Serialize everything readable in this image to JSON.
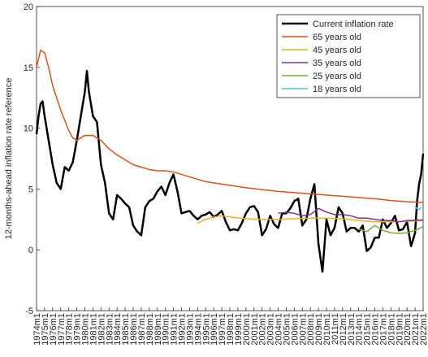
{
  "chart_data": {
    "type": "line",
    "ylabel": "12-months-ahead inflation rate reference",
    "xlim": [
      1974,
      2022
    ],
    "ylim": [
      -5,
      20
    ],
    "yticks": [
      -5,
      0,
      5,
      10,
      15,
      20
    ],
    "xticks": [
      {
        "value": 1974,
        "label": "1974m1"
      },
      {
        "value": 1975,
        "label": "1975m1"
      },
      {
        "value": 1976,
        "label": "1976m1"
      },
      {
        "value": 1977,
        "label": "1977m1"
      },
      {
        "value": 1978,
        "label": "1978m1"
      },
      {
        "value": 1979,
        "label": "1979m1"
      },
      {
        "value": 1980,
        "label": "1980m1"
      },
      {
        "value": 1981,
        "label": "1981m1"
      },
      {
        "value": 1982,
        "label": "1982m1"
      },
      {
        "value": 1983,
        "label": "1983m1"
      },
      {
        "value": 1984,
        "label": "1984m1"
      },
      {
        "value": 1985,
        "label": "1985m1"
      },
      {
        "value": 1986,
        "label": "1986m1"
      },
      {
        "value": 1987,
        "label": "1987m1"
      },
      {
        "value": 1988,
        "label": "1988m1"
      },
      {
        "value": 1989,
        "label": "1989m1"
      },
      {
        "value": 1990,
        "label": "1990m1"
      },
      {
        "value": 1991,
        "label": "1991m1"
      },
      {
        "value": 1992,
        "label": "1992m1"
      },
      {
        "value": 1993,
        "label": "1993m1"
      },
      {
        "value": 1994,
        "label": "1994m1"
      },
      {
        "value": 1995,
        "label": "1995m1"
      },
      {
        "value": 1996,
        "label": "1996m1"
      },
      {
        "value": 1997,
        "label": "1997m1"
      },
      {
        "value": 1998,
        "label": "1998m1"
      },
      {
        "value": 1999,
        "label": "1999m1"
      },
      {
        "value": 2000,
        "label": "2000m1"
      },
      {
        "value": 2001,
        "label": "2001m1"
      },
      {
        "value": 2002,
        "label": "2002m1"
      },
      {
        "value": 2003,
        "label": "2003m1"
      },
      {
        "value": 2004,
        "label": "2004m1"
      },
      {
        "value": 2005,
        "label": "2005m1"
      },
      {
        "value": 2006,
        "label": "2006m1"
      },
      {
        "value": 2007,
        "label": "2007m1"
      },
      {
        "value": 2008,
        "label": "2008m1"
      },
      {
        "value": 2009,
        "label": "2009m1"
      },
      {
        "value": 2010,
        "label": "2010m1"
      },
      {
        "value": 2011,
        "label": "2011m1"
      },
      {
        "value": 2012,
        "label": "2012m1"
      },
      {
        "value": 2013,
        "label": "2013m1"
      },
      {
        "value": 2014,
        "label": "2014m1"
      },
      {
        "value": 2015,
        "label": "2015m1"
      },
      {
        "value": 2016,
        "label": "2016m1"
      },
      {
        "value": 2017,
        "label": "2017m1"
      },
      {
        "value": 2018,
        "label": "2018m1"
      },
      {
        "value": 2019,
        "label": "2019m1"
      },
      {
        "value": 2020,
        "label": "2020m1"
      },
      {
        "value": 2021,
        "label": "2021m1"
      },
      {
        "value": 2022,
        "label": "2022m1"
      }
    ],
    "legend": "upper right",
    "series": [
      {
        "name": "Current inflation rate",
        "color": "#000000",
        "width": 2.5,
        "x": [
          1974,
          1974.25,
          1974.5,
          1974.75,
          1975,
          1975.5,
          1976,
          1976.5,
          1977,
          1977.5,
          1978,
          1978.5,
          1979,
          1979.5,
          1980,
          1980.25,
          1980.5,
          1981,
          1981.5,
          1982,
          1982.5,
          1983,
          1983.5,
          1984,
          1984.5,
          1985,
          1985.5,
          1986,
          1986.5,
          1987,
          1987.5,
          1988,
          1988.5,
          1989,
          1989.5,
          1990,
          1990.5,
          1991,
          1991.5,
          1992,
          1992.5,
          1993,
          1993.5,
          1994,
          1994.5,
          1995,
          1995.5,
          1996,
          1996.5,
          1997,
          1997.5,
          1998,
          1998.5,
          1999,
          1999.5,
          2000,
          2000.5,
          2001,
          2001.5,
          2002,
          2002.5,
          2003,
          2003.5,
          2004,
          2004.5,
          2005,
          2005.5,
          2006,
          2006.5,
          2007,
          2007.5,
          2008,
          2008.5,
          2009,
          2009.5,
          2010,
          2010.5,
          2011,
          2011.5,
          2012,
          2012.5,
          2013,
          2013.5,
          2014,
          2014.5,
          2015,
          2015.5,
          2016,
          2016.5,
          2017,
          2017.5,
          2018,
          2018.5,
          2019,
          2019.5,
          2020,
          2020.5,
          2021,
          2021.25,
          2021.5,
          2021.75,
          2022
        ],
        "values": [
          9.5,
          11,
          12,
          12.2,
          11,
          9,
          7,
          5.5,
          5,
          6.8,
          6.5,
          7.2,
          9,
          11,
          13,
          14.7,
          13,
          11,
          10.5,
          7,
          5.5,
          3,
          2.5,
          4.5,
          4.2,
          3.8,
          3.5,
          2,
          1.5,
          1.2,
          3.5,
          4,
          4.2,
          4.8,
          5.2,
          4.5,
          5.5,
          6.2,
          4.8,
          3,
          3.1,
          3.2,
          2.8,
          2.5,
          2.8,
          2.9,
          3.1,
          2.7,
          2.9,
          3.2,
          2.3,
          1.6,
          1.7,
          1.6,
          2.2,
          3,
          3.5,
          3.6,
          3.1,
          1.2,
          1.7,
          2.8,
          2.1,
          1.8,
          3,
          3,
          3.4,
          4,
          4.2,
          2,
          2.5,
          4.2,
          5.4,
          0.5,
          -1.8,
          2.5,
          1.2,
          1.8,
          3.5,
          3,
          1.5,
          1.8,
          1.8,
          1.5,
          2,
          -0.1,
          0.2,
          1,
          1,
          2.5,
          1.8,
          2.2,
          2.8,
          1.6,
          1.7,
          2.3,
          0.3,
          1.4,
          4,
          5.4,
          6.2,
          7.9
        ]
      },
      {
        "name": "65 years old",
        "color": "#d95319",
        "width": 1.5,
        "x": [
          1974,
          1974.5,
          1975,
          1975.5,
          1976,
          1977,
          1978,
          1978.5,
          1979,
          1980,
          1981,
          1982,
          1983,
          1984,
          1985,
          1986,
          1987,
          1988,
          1989,
          1990,
          1991,
          1992,
          1993,
          1994,
          1995,
          1996,
          1997,
          1998,
          2000,
          2002,
          2004,
          2006,
          2008,
          2010,
          2012,
          2014,
          2016,
          2018,
          2020,
          2022
        ],
        "values": [
          15,
          16.4,
          16.2,
          15,
          13.5,
          11.5,
          9.8,
          9.2,
          9,
          9.4,
          9.4,
          9,
          8.3,
          7.8,
          7.4,
          7.0,
          6.8,
          6.6,
          6.5,
          6.5,
          6.4,
          6.2,
          6.0,
          5.8,
          5.6,
          5.5,
          5.4,
          5.3,
          5.1,
          4.95,
          4.8,
          4.7,
          4.6,
          4.5,
          4.4,
          4.3,
          4.2,
          4.05,
          3.95,
          3.9
        ]
      },
      {
        "name": "45 years old",
        "color": "#edb120",
        "width": 1.5,
        "x": [
          1994,
          1995,
          1996,
          1997,
          1998,
          2000,
          2002,
          2004,
          2006,
          2008,
          2010,
          2012,
          2014,
          2016,
          2018,
          2020,
          2022
        ],
        "values": [
          2.2,
          2.5,
          2.7,
          2.8,
          2.7,
          2.55,
          2.5,
          2.5,
          2.55,
          2.6,
          2.6,
          2.55,
          2.4,
          2.3,
          2.3,
          2.35,
          2.4
        ]
      },
      {
        "name": "35 years old",
        "color": "#7e2f8e",
        "width": 1.5,
        "x": [
          2004,
          2005,
          2006,
          2007,
          2008,
          2009,
          2010,
          2011,
          2012,
          2013,
          2014,
          2015,
          2016,
          2017,
          2018,
          2019,
          2020,
          2022
        ],
        "values": [
          3.0,
          3.1,
          3.0,
          2.8,
          2.9,
          3.4,
          3.1,
          2.9,
          2.9,
          2.8,
          2.6,
          2.6,
          2.5,
          2.4,
          2.4,
          2.3,
          2.4,
          2.45
        ]
      },
      {
        "name": "25 years old",
        "color": "#77ac30",
        "width": 1.5,
        "x": [
          2014,
          2015,
          2016,
          2017,
          2018,
          2019,
          2020,
          2021,
          2022
        ],
        "values": [
          1.7,
          1.5,
          2.0,
          1.6,
          1.4,
          1.35,
          1.4,
          1.6,
          1.9
        ]
      },
      {
        "name": "18 years old",
        "color": "#4dbeee",
        "width": 1.5,
        "x": [
          2021,
          2021.2,
          2021.5,
          2021.75
        ],
        "values": [
          3.6,
          3.4,
          3.3,
          3.5
        ]
      }
    ]
  }
}
